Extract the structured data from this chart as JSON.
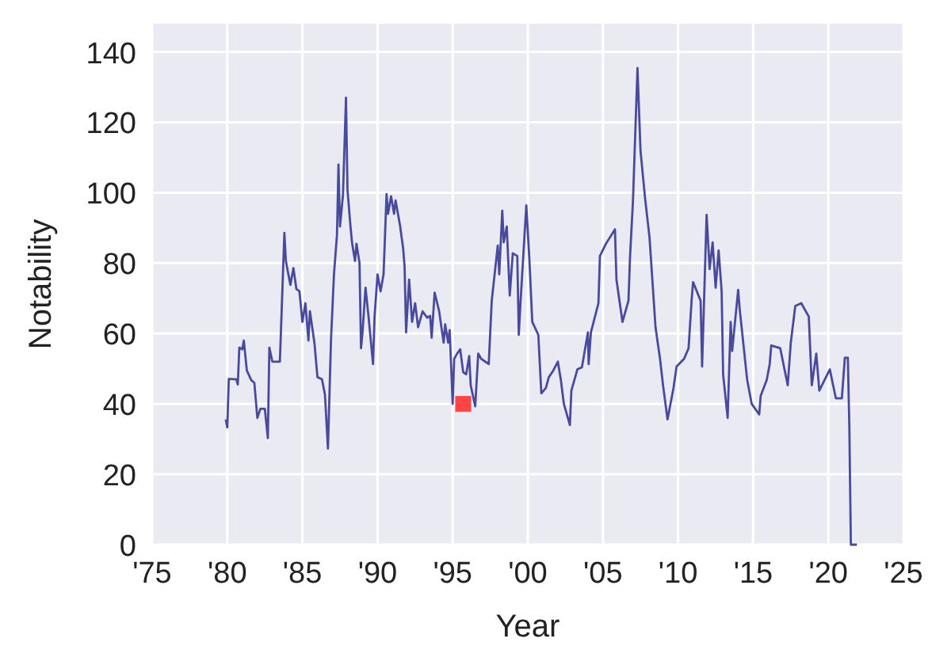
{
  "chart_data": {
    "type": "line",
    "xlabel": "Year",
    "ylabel": "Notability",
    "xlim": [
      1975,
      2025
    ],
    "ylim": [
      0,
      148
    ],
    "xticks": [
      {
        "value": 1975,
        "label": "'75"
      },
      {
        "value": 1980,
        "label": "'80"
      },
      {
        "value": 1985,
        "label": "'85"
      },
      {
        "value": 1990,
        "label": "'90"
      },
      {
        "value": 1995,
        "label": "'95"
      },
      {
        "value": 2000,
        "label": "'00"
      },
      {
        "value": 2005,
        "label": "'05"
      },
      {
        "value": 2010,
        "label": "'10"
      },
      {
        "value": 2015,
        "label": "'15"
      },
      {
        "value": 2020,
        "label": "'20"
      },
      {
        "value": 2025,
        "label": "'25"
      }
    ],
    "yticks": [
      0,
      20,
      40,
      60,
      80,
      100,
      120,
      140
    ],
    "grid": true,
    "series": [
      {
        "color": "#4a4a9c",
        "marker": "none",
        "line_style": "solid",
        "x": [
          1979.9,
          1980.0,
          1980.1,
          1980.6,
          1980.7,
          1980.8,
          1981.0,
          1981.1,
          1981.3,
          1981.6,
          1981.8,
          1982.0,
          1982.2,
          1982.5,
          1982.7,
          1982.8,
          1983.0,
          1983.5,
          1983.8,
          1983.9,
          1984.2,
          1984.4,
          1984.6,
          1984.8,
          1985.0,
          1985.2,
          1985.4,
          1985.5,
          1985.8,
          1986.0,
          1986.3,
          1986.5,
          1986.7,
          1986.9,
          1987.1,
          1987.3,
          1987.4,
          1987.5,
          1987.7,
          1987.9,
          1988.0,
          1988.2,
          1988.3,
          1988.5,
          1988.6,
          1988.8,
          1988.9,
          1989.0,
          1989.2,
          1989.4,
          1989.7,
          1989.8,
          1990.0,
          1990.2,
          1990.4,
          1990.6,
          1990.7,
          1990.9,
          1991.1,
          1991.2,
          1991.5,
          1991.7,
          1991.8,
          1991.9,
          1992.1,
          1992.3,
          1992.5,
          1992.7,
          1993.0,
          1993.3,
          1993.5,
          1993.6,
          1993.8,
          1994.1,
          1994.3,
          1994.4,
          1994.5,
          1994.7,
          1994.8,
          1995.0,
          1995.1,
          1995.3,
          1995.5,
          1995.7,
          1995.9,
          1996.1,
          1996.2,
          1996.5,
          1996.7,
          1996.9,
          1997.4,
          1997.6,
          1998.0,
          1998.1,
          1998.3,
          1998.4,
          1998.6,
          1998.8,
          1999.0,
          1999.3,
          1999.4,
          1999.5,
          1999.9,
          2000.1,
          2000.3,
          2000.7,
          2000.9,
          2001.2,
          2001.4,
          2001.7,
          2002.0,
          2002.2,
          2002.4,
          2002.8,
          2002.9,
          2003.3,
          2003.6,
          2004.0,
          2004.05,
          2004.2,
          2004.7,
          2004.8,
          2005.2,
          2005.8,
          2005.9,
          2006.3,
          2006.7,
          2006.8,
          2007.0,
          2007.3,
          2007.5,
          2007.8,
          2008.1,
          2008.5,
          2008.8,
          2009.0,
          2009.3,
          2009.7,
          2009.9,
          2010.4,
          2010.7,
          2010.9,
          2011.0,
          2011.5,
          2011.6,
          2011.9,
          2012.1,
          2012.3,
          2012.5,
          2012.7,
          2012.9,
          2013.0,
          2013.3,
          2013.5,
          2013.6,
          2014.0,
          2014.1,
          2014.6,
          2014.9,
          2015.4,
          2015.5,
          2015.9,
          2016.1,
          2016.2,
          2016.8,
          2017.3,
          2017.5,
          2017.8,
          2018.2,
          2018.7,
          2018.9,
          2019.2,
          2019.4,
          2020.1,
          2020.5,
          2020.9,
          2021.1,
          2021.3,
          2021.4,
          2021.5,
          2021.9
        ],
        "values": [
          35.6,
          33.3,
          47.1,
          47,
          45.5,
          56,
          55.5,
          58,
          49.5,
          46.7,
          46,
          36,
          38.6,
          38.6,
          30.3,
          56,
          52,
          52,
          88.6,
          80.6,
          73.8,
          78.6,
          72.6,
          72,
          63.3,
          68.6,
          58,
          66.3,
          57.3,
          47.6,
          47,
          42.6,
          27.3,
          58,
          76.8,
          88,
          108,
          90.4,
          99.4,
          127,
          100.8,
          90.4,
          85.9,
          80.6,
          85.5,
          80,
          55.8,
          60.3,
          73,
          64.8,
          51.3,
          64.7,
          76.8,
          72,
          76.8,
          99.6,
          94,
          99,
          94,
          97.8,
          90.6,
          84.3,
          79,
          60.3,
          75.3,
          63.3,
          68.6,
          61.8,
          66.3,
          64.5,
          65,
          58.8,
          71.6,
          66.3,
          60.3,
          57.4,
          62.6,
          57.4,
          61,
          40,
          52.8,
          54.3,
          55.5,
          49,
          48.4,
          53.6,
          45.3,
          39.3,
          54.3,
          52.8,
          51.3,
          69.3,
          85,
          76.8,
          94.9,
          85.9,
          90.4,
          70.8,
          82.8,
          82,
          59.6,
          67.8,
          96.4,
          81.4,
          63.3,
          59.6,
          43,
          44.5,
          47.6,
          49.5,
          52,
          46.8,
          40,
          34,
          43.8,
          49.8,
          50.4,
          60.3,
          51.3,
          60.3,
          68.6,
          82,
          85.5,
          89.6,
          75.3,
          63.3,
          69.3,
          81.4,
          97.8,
          135.4,
          112,
          98.6,
          87.3,
          61.8,
          52.8,
          45.3,
          35.6,
          44.6,
          50.6,
          52.8,
          55.8,
          69.3,
          74.6,
          69.3,
          50.6,
          93.7,
          78.3,
          85.9,
          73,
          83.6,
          72,
          48.3,
          36,
          63.3,
          55,
          72.4,
          67,
          46.8,
          40,
          37,
          42.3,
          46.8,
          51.3,
          56.6,
          55.8,
          45.3,
          57.3,
          67.8,
          68.6,
          64.8,
          45.3,
          54.3,
          43.8,
          49.8,
          41.6,
          41.6,
          53.1,
          53.1,
          33.3,
          0,
          0
        ]
      },
      {
        "type": "scatter",
        "color": "#ff4444",
        "marker": "square",
        "x": [
          1995.7
        ],
        "values": [
          40
        ]
      }
    ]
  }
}
